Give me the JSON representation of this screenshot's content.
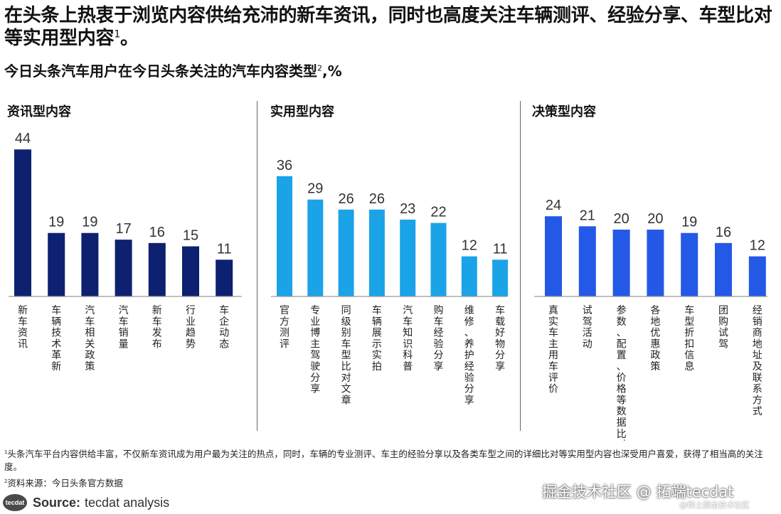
{
  "title": "在头条上热衷于浏览内容供给充沛的新车资讯，同时也高度关注车辆测评、经验分享、车型比对等实用型内容",
  "title_sup": "1",
  "title_end": "。",
  "subtitle": "今日头条汽车用户在今日头条关注的汽车内容类型",
  "subtitle_sup": "2",
  "subtitle_unit": ",%",
  "chart_data": [
    {
      "type": "bar",
      "title": "资讯型内容",
      "color": "#0d2170",
      "categories": [
        "新车资讯",
        "车辆技术革新",
        "汽车相关政策",
        "汽车销量",
        "新车发布",
        "行业趋势",
        "车企动态"
      ],
      "values": [
        44,
        19,
        19,
        17,
        16,
        15,
        11
      ]
    },
    {
      "type": "bar",
      "title": "实用型内容",
      "color": "#1ba3e8",
      "categories": [
        "官方测评",
        "专业博主驾驶分享",
        "同级别车型比对文章",
        "车辆展示实拍",
        "汽车知识科普",
        "购车经验分享",
        "维修、养护经验分享",
        "车载好物分享"
      ],
      "values": [
        36,
        29,
        26,
        26,
        23,
        22,
        12,
        11
      ]
    },
    {
      "type": "bar",
      "title": "决策型内容",
      "color": "#2458e6",
      "categories": [
        "真实车主用车评价",
        "试驾活动",
        "参数、配置、价格等数据比对",
        "各地优惠政策",
        "车型折扣信息",
        "团购试驾",
        "经销商地址及联系方式"
      ],
      "values": [
        24,
        21,
        20,
        20,
        19,
        16,
        12
      ]
    }
  ],
  "footnote_sup": "1",
  "footnote": "头条汽车平台内容供给丰富，不仅新车资讯成为用户最为关注的热点，同时，车辆的专业测评、车主的经验分享以及各类车型之间的详细比对等实用型内容也深受用户喜爱，获得了相当高的关注度。",
  "source_note_sup": "2",
  "source_note": "资料来源：今日头条官方数据",
  "logo_text": "tecdat",
  "source_label": "Source:",
  "source_value": "tecdat analysis",
  "watermark_main": "掘金技术社区 @ 拓端tecdat",
  "watermark_sub": "@稀土掘金技术社区",
  "colors": {
    "bar_dark": "#0d2170",
    "bar_light": "#1ba3e8",
    "bar_mid": "#2458e6"
  }
}
